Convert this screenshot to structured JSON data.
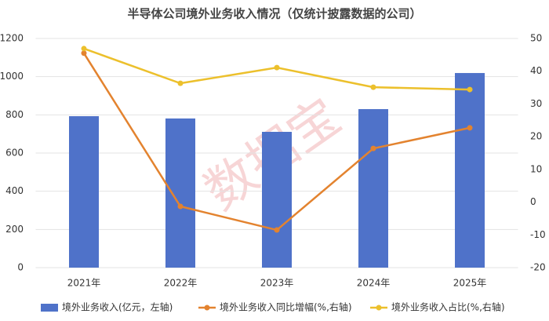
{
  "chart_data": {
    "type": "bar-line",
    "title": "半导体公司境外业务收入情况（仅统计披露数据的公司）",
    "watermark": "数据宝",
    "categories": [
      "2021年",
      "2022年",
      "2023年",
      "2024年",
      "2025年"
    ],
    "series": [
      {
        "name": "境外业务收入(亿元，左轴)",
        "type": "bar",
        "color": "#4f72c9",
        "values": [
          793,
          781,
          711,
          830,
          1019
        ]
      },
      {
        "name": "境外业务收入同比增幅(%,右轴)",
        "type": "line",
        "axis": "y2",
        "color": "#e3832f",
        "values": [
          45.5,
          -1.3,
          -8.5,
          16.4,
          22.7
        ]
      },
      {
        "name": "境外业务收入占比(%,右轴)",
        "type": "line",
        "axis": "y2",
        "color": "#ecc02c",
        "values": [
          46.9,
          36.3,
          41.1,
          35.1,
          34.4
        ]
      }
    ],
    "ylim": [
      0,
      1200
    ],
    "yticks": [
      0,
      200,
      400,
      600,
      800,
      1000,
      1200
    ],
    "y2lim": [
      -20,
      50
    ],
    "y2ticks": [
      -20,
      -10,
      0,
      10,
      20,
      30,
      40,
      50
    ],
    "grid": true,
    "legend": "bottom"
  }
}
